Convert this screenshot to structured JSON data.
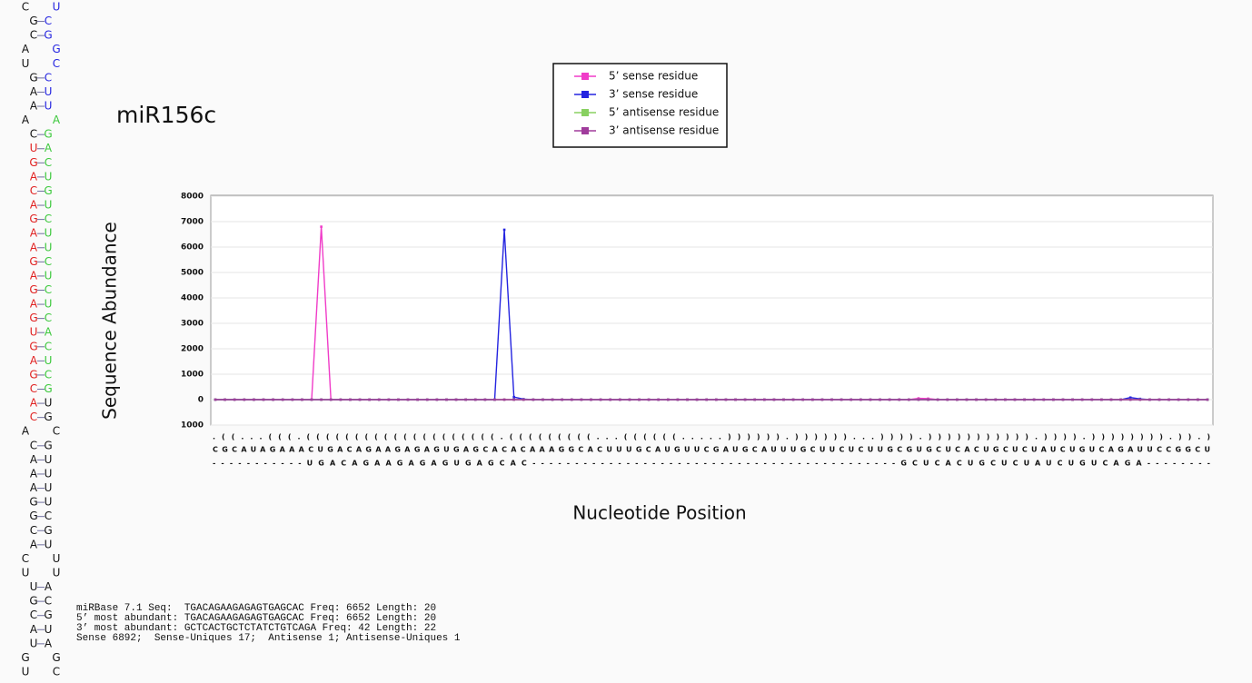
{
  "chart_data": {
    "type": "line",
    "title": "miR156c",
    "ylabel": "Sequence Abundance",
    "xlabel": "Nucleotide Position",
    "ylim": [
      -1000,
      8000
    ],
    "yticks": [
      {
        "value": -1000,
        "label": "1000"
      },
      0,
      1000,
      2000,
      3000,
      4000,
      5000,
      6000,
      7000,
      8000
    ],
    "grid": true,
    "legend": "top",
    "structure": ".((...(((.((((((((((((((((((((.(((((((((...((((((.....)))))).))))))...)))).))))))))))).)))).)))))))).)).)",
    "sequence": "CGCAUAGAAACUGACAGAAGAGAGUGAGCACACAAAGGCACUUUGCAUGUUCGAUGCAUUUGCUUCUCUUGCGUGCUCACUGCUCUAUCUGUCAGAUUCCGGCU",
    "reads": "-----------UGACAGAAGAGAGUGAGCAC-------------------------------------------GCUCACUGCUCUAUCUGUCAGA--------",
    "series": [
      {
        "name": "5’ sense residue",
        "color": "#f03cc8",
        "values": [
          0,
          0,
          0,
          0,
          0,
          0,
          0,
          0,
          0,
          0,
          0,
          6800,
          0,
          0,
          0,
          0,
          0,
          0,
          0,
          0,
          0,
          0,
          0,
          0,
          0,
          0,
          0,
          0,
          0,
          0,
          0,
          0,
          0,
          0,
          0,
          0,
          0,
          0,
          0,
          0,
          0,
          0,
          0,
          0,
          0,
          0,
          0,
          0,
          0,
          0,
          0,
          0,
          0,
          0,
          0,
          0,
          0,
          0,
          0,
          0,
          0,
          0,
          0,
          0,
          0,
          0,
          0,
          0,
          0,
          0,
          0,
          0,
          0,
          50,
          40,
          0,
          0,
          0,
          0,
          0,
          0,
          0,
          0,
          0,
          0,
          0,
          0,
          0,
          0,
          0,
          0,
          0,
          0,
          0,
          0,
          0,
          0,
          0,
          0,
          0,
          0,
          0,
          0,
          0
        ]
      },
      {
        "name": "3’ sense residue",
        "color": "#2424e0",
        "values": [
          0,
          0,
          0,
          0,
          0,
          0,
          0,
          0,
          0,
          0,
          0,
          0,
          0,
          0,
          0,
          0,
          0,
          0,
          0,
          0,
          0,
          0,
          0,
          0,
          0,
          0,
          0,
          0,
          0,
          0,
          6680,
          100,
          20,
          0,
          0,
          0,
          0,
          0,
          0,
          0,
          0,
          0,
          0,
          0,
          0,
          0,
          0,
          0,
          0,
          0,
          0,
          0,
          0,
          0,
          0,
          0,
          0,
          0,
          0,
          0,
          0,
          0,
          0,
          0,
          0,
          0,
          0,
          0,
          0,
          0,
          0,
          0,
          0,
          0,
          0,
          0,
          0,
          0,
          0,
          0,
          0,
          0,
          0,
          0,
          0,
          0,
          0,
          0,
          0,
          0,
          0,
          0,
          0,
          0,
          0,
          80,
          30,
          0,
          0,
          0,
          0,
          0,
          0,
          0
        ]
      },
      {
        "name": "5’ antisense residue",
        "color": "#88d060",
        "values": [
          0,
          0,
          0,
          0,
          0,
          0,
          0,
          0,
          0,
          0,
          0,
          0,
          0,
          0,
          0,
          0,
          0,
          0,
          0,
          0,
          0,
          0,
          0,
          0,
          0,
          0,
          0,
          0,
          0,
          0,
          0,
          0,
          0,
          0,
          0,
          0,
          0,
          0,
          0,
          0,
          0,
          0,
          0,
          0,
          0,
          0,
          0,
          0,
          0,
          0,
          0,
          0,
          0,
          0,
          0,
          0,
          0,
          0,
          0,
          0,
          0,
          0,
          0,
          0,
          0,
          0,
          0,
          0,
          0,
          0,
          0,
          0,
          0,
          0,
          0,
          0,
          0,
          0,
          0,
          0,
          0,
          0,
          0,
          0,
          0,
          0,
          0,
          0,
          0,
          0,
          0,
          0,
          0,
          0,
          0,
          0,
          0,
          0,
          0,
          0,
          0,
          0,
          0,
          0
        ]
      },
      {
        "name": "3’ antisense residue",
        "color": "#a03c9c",
        "values": [
          0,
          0,
          0,
          0,
          0,
          0,
          0,
          0,
          0,
          0,
          0,
          0,
          0,
          0,
          0,
          0,
          0,
          0,
          0,
          0,
          0,
          0,
          0,
          0,
          0,
          0,
          0,
          0,
          0,
          0,
          0,
          0,
          0,
          0,
          0,
          0,
          0,
          0,
          0,
          0,
          0,
          0,
          0,
          0,
          0,
          0,
          0,
          0,
          0,
          0,
          0,
          0,
          0,
          0,
          0,
          0,
          0,
          0,
          0,
          0,
          0,
          0,
          0,
          0,
          0,
          0,
          0,
          0,
          0,
          0,
          0,
          0,
          0,
          0,
          0,
          0,
          0,
          0,
          0,
          0,
          0,
          0,
          0,
          0,
          0,
          0,
          0,
          0,
          0,
          0,
          0,
          0,
          0,
          0,
          0,
          0,
          0,
          0,
          0,
          0,
          0,
          0,
          0,
          0
        ]
      }
    ],
    "footer": [
      "miRBase 7.1 Seq:  TGACAGAAGAGAGTGAGCAC Freq: 6652 Length: 20",
      "5’ most abundant: TGACAGAAGAGAGTGAGCAC Freq: 6652 Length: 20",
      "3’ most abundant: GCTCACTGCTCTATCTGTCAGA Freq: 42 Length: 22",
      "Sense 6892;  Sense-Uniques 17;  Antisense 1; Antisense-Uniques 1"
    ],
    "hairpin_colors": {
      "k": "#111111",
      "b": "#2424e0",
      "r": "#e02020",
      "g": "#3cc83c"
    },
    "hairpin": [
      {
        "l": "C",
        "r": "U",
        "c": "kb",
        "p": false
      },
      {
        "l": "G",
        "r": "C",
        "c": "kb",
        "p": true
      },
      {
        "l": "C",
        "r": "G",
        "c": "kb",
        "p": true
      },
      {
        "l": "A",
        "r": "G",
        "c": "kb",
        "p": false
      },
      {
        "l": "U",
        "r": "C",
        "c": "kb",
        "p": false
      },
      {
        "l": "G",
        "r": "C",
        "c": "kb",
        "p": true
      },
      {
        "l": "A",
        "r": "U",
        "c": "kb",
        "p": true
      },
      {
        "l": "A",
        "r": "U",
        "c": "kb",
        "p": true
      },
      {
        "l": "A",
        "r": "A",
        "c": "kg",
        "p": false
      },
      {
        "l": "C",
        "r": "G",
        "c": "kg",
        "p": true
      },
      {
        "l": "U",
        "r": "A",
        "c": "rg",
        "p": true
      },
      {
        "l": "G",
        "r": "C",
        "c": "rg",
        "p": true
      },
      {
        "l": "A",
        "r": "U",
        "c": "rg",
        "p": true
      },
      {
        "l": "C",
        "r": "G",
        "c": "rg",
        "p": true
      },
      {
        "l": "A",
        "r": "U",
        "c": "rg",
        "p": true
      },
      {
        "l": "G",
        "r": "C",
        "c": "rg",
        "p": true
      },
      {
        "l": "A",
        "r": "U",
        "c": "rg",
        "p": true
      },
      {
        "l": "A",
        "r": "U",
        "c": "rg",
        "p": true
      },
      {
        "l": "G",
        "r": "C",
        "c": "rg",
        "p": true
      },
      {
        "l": "A",
        "r": "U",
        "c": "rg",
        "p": true
      },
      {
        "l": "G",
        "r": "C",
        "c": "rg",
        "p": true
      },
      {
        "l": "A",
        "r": "U",
        "c": "rg",
        "p": true
      },
      {
        "l": "G",
        "r": "C",
        "c": "rg",
        "p": true
      },
      {
        "l": "U",
        "r": "A",
        "c": "rg",
        "p": true
      },
      {
        "l": "G",
        "r": "C",
        "c": "rg",
        "p": true
      },
      {
        "l": "A",
        "r": "U",
        "c": "rg",
        "p": true
      },
      {
        "l": "G",
        "r": "C",
        "c": "rg",
        "p": true
      },
      {
        "l": "C",
        "r": "G",
        "c": "rg",
        "p": true
      },
      {
        "l": "A",
        "r": "U",
        "c": "rk",
        "p": true
      },
      {
        "l": "C",
        "r": "G",
        "c": "rk",
        "p": true
      },
      {
        "l": "A",
        "r": "C",
        "c": "kk",
        "p": false
      },
      {
        "l": "C",
        "r": "G",
        "c": "kk",
        "p": true
      },
      {
        "l": "A",
        "r": "U",
        "c": "kk",
        "p": true
      },
      {
        "l": "A",
        "r": "U",
        "c": "kk",
        "p": true
      },
      {
        "l": "A",
        "r": "U",
        "c": "kk",
        "p": true
      },
      {
        "l": "G",
        "r": "U",
        "c": "kk",
        "p": true
      },
      {
        "l": "G",
        "r": "C",
        "c": "kk",
        "p": true
      },
      {
        "l": "C",
        "r": "G",
        "c": "kk",
        "p": true
      },
      {
        "l": "A",
        "r": "U",
        "c": "kk",
        "p": true
      },
      {
        "l": "C",
        "r": "U",
        "c": "kk",
        "p": false
      },
      {
        "l": "U",
        "r": "U",
        "c": "kk",
        "p": false
      },
      {
        "l": "U",
        "r": "A",
        "c": "kk",
        "p": true
      },
      {
        "l": "G",
        "r": "C",
        "c": "kk",
        "p": true
      },
      {
        "l": "C",
        "r": "G",
        "c": "kk",
        "p": true
      },
      {
        "l": "A",
        "r": "U",
        "c": "kk",
        "p": true
      },
      {
        "l": "U",
        "r": "A",
        "c": "kk",
        "p": true
      },
      {
        "l": "G",
        "r": "G",
        "c": "kk",
        "p": false
      },
      {
        "l": "U",
        "r": "C",
        "c": "kk",
        "p": false
      }
    ]
  }
}
